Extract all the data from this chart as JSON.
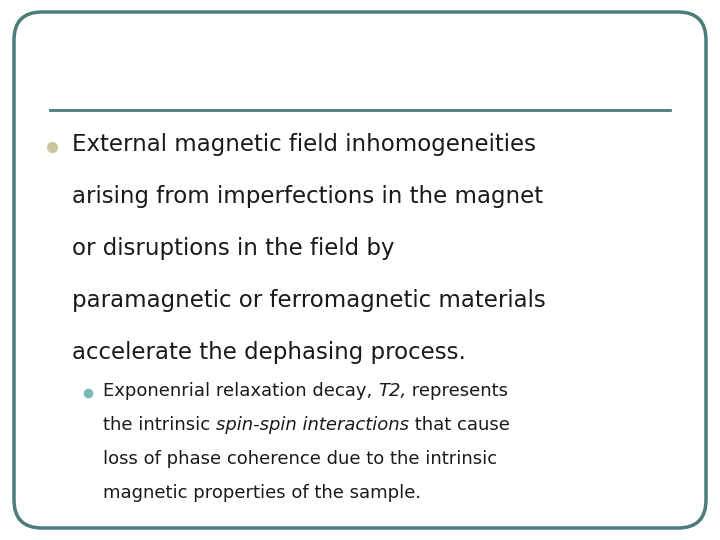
{
  "bg_color": "#ffffff",
  "border_color": "#4a7c7c",
  "line_color": "#4a7c7c",
  "bullet1_color": "#c8c89a",
  "bullet2_color": "#7ababa",
  "main_text_lines": [
    "External magnetic field inhomogeneities",
    "arising from imperfections in the magnet",
    "or disruptions in the field by",
    "paramagnetic or ferromagnetic materials",
    "accelerate the dephasing process."
  ],
  "sub_text_line1_normal1": "Exponenrial relaxation decay, ",
  "sub_text_line1_italic": "T2,",
  "sub_text_line1_normal2": " represents",
  "sub_text_line2_normal1": "the intrinsic ",
  "sub_text_line2_italic": "spin-spin interactions",
  "sub_text_line2_normal2": " that cause",
  "sub_text_line3": "loss of phase coherence due to the intrinsic",
  "sub_text_line4": "magnetic properties of the sample.",
  "main_fontsize": 16.5,
  "sub_fontsize": 13,
  "text_color": "#1a1a1a"
}
